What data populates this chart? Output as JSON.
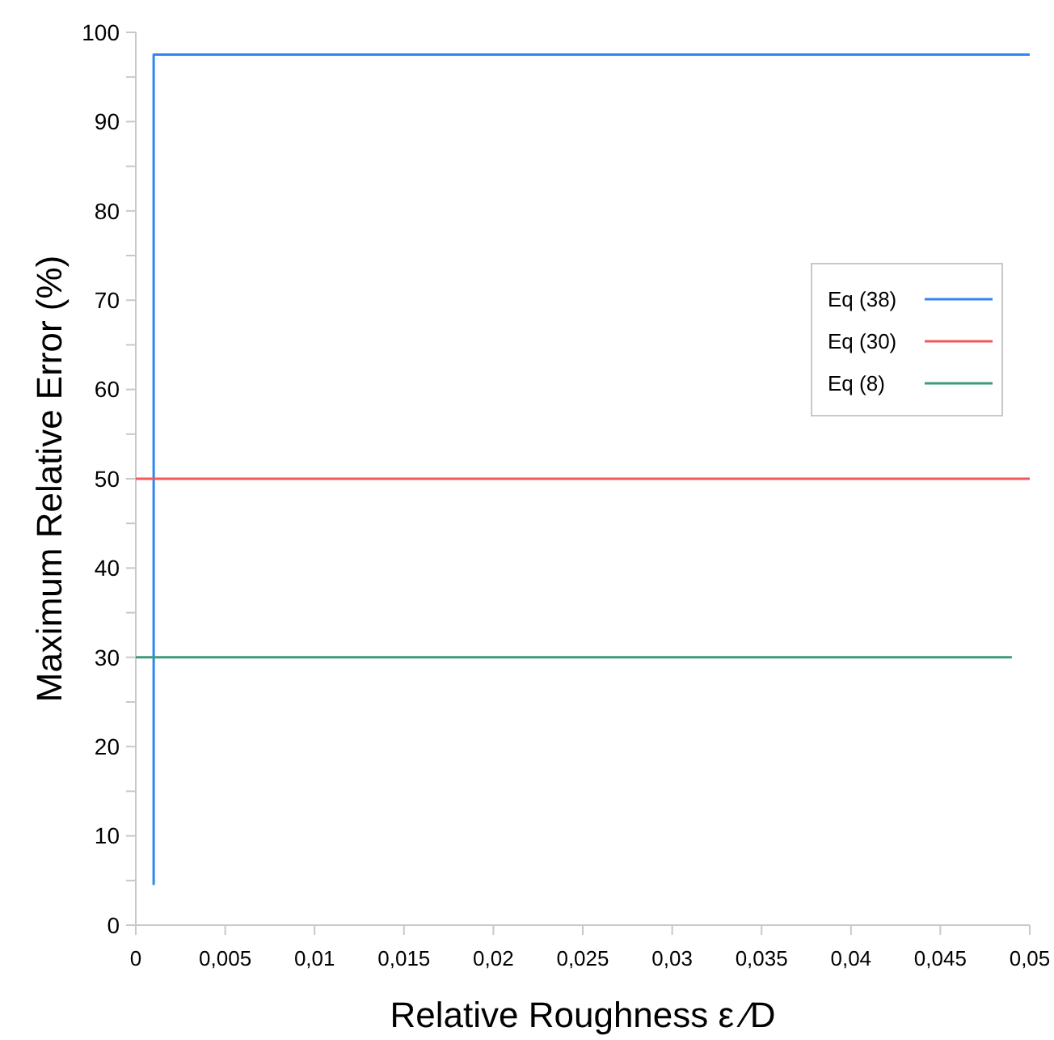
{
  "chart_data": {
    "type": "line",
    "xlabel": "Relative Roughness ε ⁄D",
    "ylabel": "Maximum Relative Error (%)",
    "xlim": [
      0,
      0.05
    ],
    "ylim": [
      0,
      100
    ],
    "xticks": [
      0,
      {
        "value": 0.005,
        "label": "0,005"
      },
      {
        "value": 0.01,
        "label": "0,01"
      },
      {
        "value": 0.015,
        "label": "0,015"
      },
      {
        "value": 0.02,
        "label": "0,02"
      },
      {
        "value": 0.025,
        "label": "0,025"
      },
      {
        "value": 0.03,
        "label": "0,03"
      },
      {
        "value": 0.035,
        "label": "0,035"
      },
      {
        "value": 0.04,
        "label": "0,04"
      },
      {
        "value": 0.045,
        "label": "0,045"
      },
      {
        "value": 0.05,
        "label": "0,05"
      }
    ],
    "yticks": [
      0,
      {
        "value": 5,
        "label": null
      },
      10,
      {
        "value": 15,
        "label": null
      },
      20,
      {
        "value": 25,
        "label": null
      },
      30,
      {
        "value": 35,
        "label": null
      },
      40,
      {
        "value": 45,
        "label": null
      },
      50,
      {
        "value": 55,
        "label": null
      },
      60,
      {
        "value": 65,
        "label": null
      },
      70,
      {
        "value": 75,
        "label": null
      },
      80,
      {
        "value": 85,
        "label": null
      },
      90,
      {
        "value": 95,
        "label": null
      },
      100
    ],
    "legend": "right",
    "grid": false,
    "marker": "none",
    "line_style": "solid",
    "series": [
      {
        "name": "Eq (38)",
        "color": "#2f86f0",
        "x": [
          0.001,
          0.001,
          0.05
        ],
        "values": [
          4.5,
          97.5,
          97.5
        ]
      },
      {
        "name": "Eq (30)",
        "color": "#f05a5a",
        "x": [
          0,
          0.05
        ],
        "values": [
          50,
          50
        ]
      },
      {
        "name": "Eq (8)",
        "color": "#3f9a78",
        "x": [
          0,
          0.049
        ],
        "values": [
          30,
          30
        ]
      }
    ]
  }
}
